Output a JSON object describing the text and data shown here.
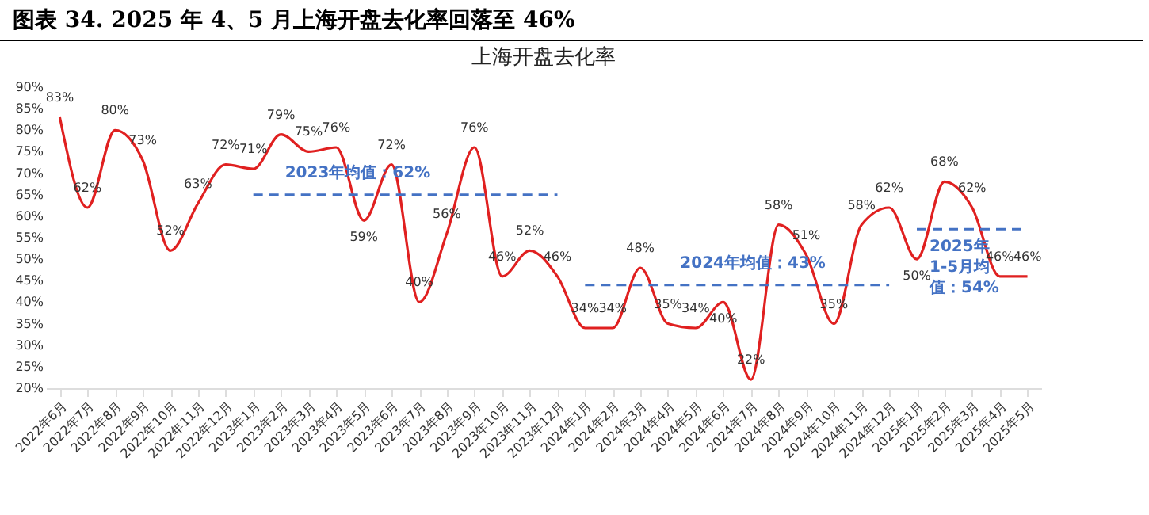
{
  "chart_data": {
    "type": "line",
    "title": "图表 34. 2025 年 4、5 月上海开盘去化率回落至 46%",
    "subtitle": "上海开盘去化率",
    "categories": [
      "2022年6月",
      "2022年7月",
      "2022年8月",
      "2022年9月",
      "2022年10月",
      "2022年11月",
      "2022年12月",
      "2023年1月",
      "2023年2月",
      "2023年3月",
      "2023年4月",
      "2023年5月",
      "2023年6月",
      "2023年7月",
      "2023年8月",
      "2023年9月",
      "2023年10月",
      "2023年11月",
      "2023年12月",
      "2024年1月",
      "2024年2月",
      "2024年3月",
      "2024年4月",
      "2024年5月",
      "2024年6月",
      "2024年7月",
      "2024年8月",
      "2024年9月",
      "2024年10月",
      "2024年11月",
      "2024年12月",
      "2025年1月",
      "2025年2月",
      "2025年3月",
      "2025年4月",
      "2025年5月"
    ],
    "series": [
      {
        "color": "#e02020",
        "values": [
          83,
          62,
          80,
          73,
          52,
          63,
          72,
          71,
          79,
          75,
          76,
          59,
          72,
          40,
          56,
          76,
          46,
          52,
          46,
          34,
          34,
          48,
          35,
          34,
          40,
          22,
          58,
          51,
          35,
          58,
          62,
          50,
          68,
          62,
          46,
          46
        ],
        "value_labels": [
          "83%",
          "62%",
          "80%",
          "73%",
          "52%",
          "63%",
          "72%",
          "71%",
          "79%",
          "75%",
          "76%",
          "59%",
          "72%",
          "40%",
          "56%",
          "76%",
          "46%",
          "52%",
          "46%",
          "34%",
          "34%",
          "48%",
          "35%",
          "34%",
          "40%",
          "22%",
          "58%",
          "51%",
          "35%",
          "58%",
          "62%",
          "50%",
          "68%",
          "62%",
          "46%",
          "46%"
        ]
      },
      {
        "name": "2023年均值：62%",
        "type": "line",
        "line_style": "dashed",
        "color": "#4472c4",
        "x": [
          "2023年1月",
          "2023年12月"
        ],
        "values": [
          65,
          65
        ]
      },
      {
        "name": "2024年均值：43%",
        "type": "line",
        "line_style": "dashed",
        "color": "#4472c4",
        "x": [
          "2024年1月",
          "2024年12月"
        ],
        "values": [
          44,
          44
        ]
      },
      {
        "name": "2025年1-5月均值：54%",
        "type": "line",
        "line_style": "dashed",
        "color": "#4472c4",
        "x": [
          "2025年1月",
          "2025年5月"
        ],
        "values": [
          57,
          57
        ]
      }
    ],
    "ylim": [
      20,
      90
    ],
    "yticks": [
      {
        "value": 20,
        "label": "20%"
      },
      {
        "value": 25,
        "label": "25%"
      },
      {
        "value": 30,
        "label": "30%"
      },
      {
        "value": 35,
        "label": "35%"
      },
      {
        "value": 40,
        "label": "40%"
      },
      {
        "value": 45,
        "label": "45%"
      },
      {
        "value": 50,
        "label": "50%"
      },
      {
        "value": 55,
        "label": "55%"
      },
      {
        "value": 60,
        "label": "60%"
      },
      {
        "value": 65,
        "label": "65%"
      },
      {
        "value": 70,
        "label": "70%"
      },
      {
        "value": 75,
        "label": "75%"
      },
      {
        "value": 80,
        "label": "80%"
      },
      {
        "value": 85,
        "label": "85%"
      },
      {
        "value": 90,
        "label": "90%"
      }
    ],
    "grid": false,
    "marker": "none",
    "line_style": "solid"
  }
}
